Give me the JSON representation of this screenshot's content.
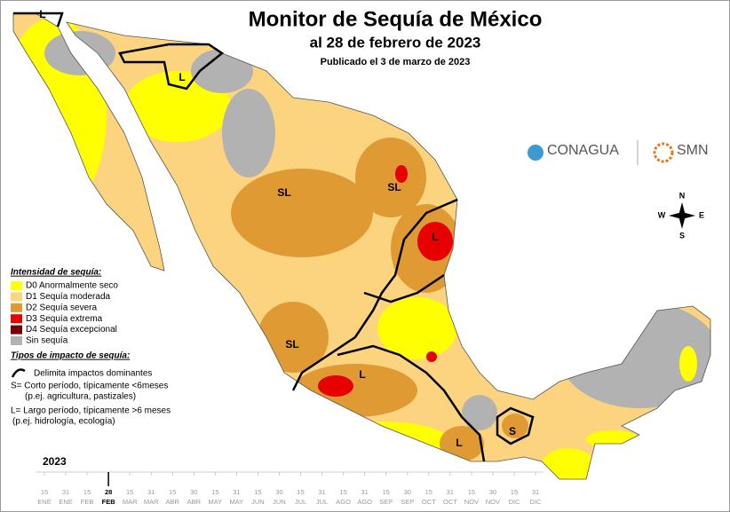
{
  "header": {
    "title": "Monitor de Sequía de México",
    "subtitle": "al 28 de febrero de 2023",
    "published": "Publicado el 3 de marzo de 2023"
  },
  "logos": {
    "conagua": "CONAGUA",
    "smn": "SMN"
  },
  "compass": {
    "n": "N",
    "s": "S",
    "e": "E",
    "w": "W"
  },
  "legend": {
    "title": "Intensidad de sequía:",
    "items": [
      {
        "label": "D0 Anormalmente seco",
        "color": "#ffff00"
      },
      {
        "label": "D1 Sequía moderada",
        "color": "#fcd37f"
      },
      {
        "label": "D2 Sequía severa",
        "color": "#e09a33"
      },
      {
        "label": "D3 Sequía extrema",
        "color": "#e60000"
      },
      {
        "label": "D4 Sequía excepcional",
        "color": "#730000"
      },
      {
        "label": "Sin sequía",
        "color": "#b2b2b2"
      }
    ]
  },
  "impacts": {
    "title": "Tipos de impacto de sequía:",
    "line": "Delimita impactos dominantes",
    "s_text": "S= Corto período, típicamente <6meses",
    "s_example": "(p.ej. agricultura, pastizales)",
    "l_text": "L= Largo período, típicamente >6 meses",
    "l_example": "(p.ej. hidrología, ecología)"
  },
  "map": {
    "labels": [
      "L",
      "L",
      "SL",
      "SL",
      "L",
      "SL",
      "L",
      "S",
      "L"
    ]
  },
  "timeline": {
    "year": "2023",
    "current_index": 3,
    "ticks": [
      {
        "day": "15",
        "month": "ENE"
      },
      {
        "day": "31",
        "month": "ENE"
      },
      {
        "day": "15",
        "month": "FEB"
      },
      {
        "day": "28",
        "month": "FEB"
      },
      {
        "day": "15",
        "month": "MAR"
      },
      {
        "day": "31",
        "month": "MAR"
      },
      {
        "day": "15",
        "month": "ABR"
      },
      {
        "day": "30",
        "month": "ABR"
      },
      {
        "day": "15",
        "month": "MAY"
      },
      {
        "day": "31",
        "month": "MAY"
      },
      {
        "day": "15",
        "month": "JUN"
      },
      {
        "day": "30",
        "month": "JUN"
      },
      {
        "day": "15",
        "month": "JUL"
      },
      {
        "day": "31",
        "month": "JUL"
      },
      {
        "day": "15",
        "month": "AGO"
      },
      {
        "day": "31",
        "month": "AGO"
      },
      {
        "day": "15",
        "month": "SEP"
      },
      {
        "day": "30",
        "month": "SEP"
      },
      {
        "day": "15",
        "month": "OCT"
      },
      {
        "day": "31",
        "month": "OCT"
      },
      {
        "day": "15",
        "month": "NOV"
      },
      {
        "day": "30",
        "month": "NOV"
      },
      {
        "day": "15",
        "month": "DIC"
      },
      {
        "day": "31",
        "month": "DIC"
      }
    ]
  }
}
